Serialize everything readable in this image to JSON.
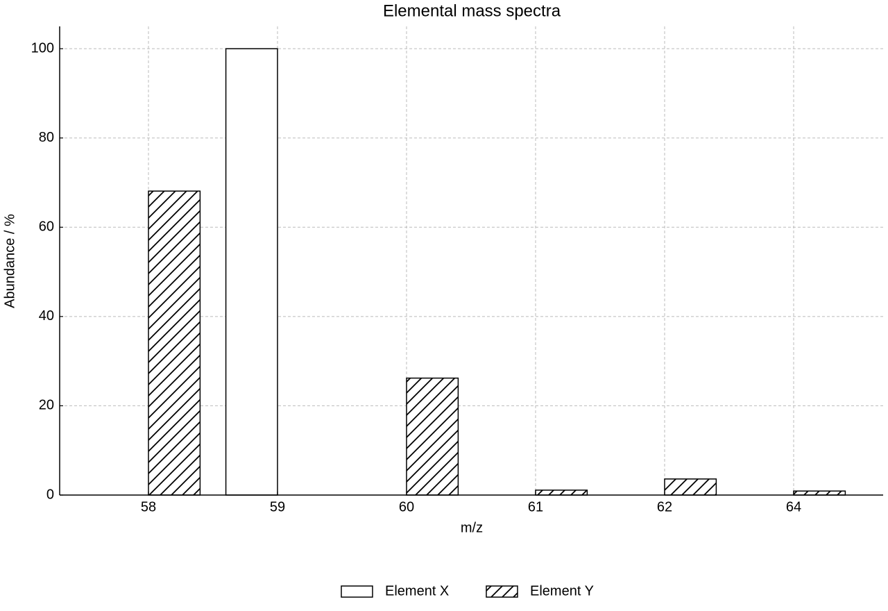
{
  "chart_data": {
    "type": "bar",
    "title": "Elemental mass spectra",
    "x_label": "m/z",
    "y_label": "Abundance / %",
    "categories": [
      "58",
      "59",
      "60",
      "61",
      "62",
      "64"
    ],
    "series": [
      {
        "name": "Element X",
        "color": "#ffffff",
        "edgecolor": "#000000",
        "hatch": "",
        "values": [
          0,
          100,
          0,
          0,
          0,
          0
        ]
      },
      {
        "name": "Element Y",
        "color": "#ffffff",
        "edgecolor": "#000000",
        "hatch": "/",
        "values": [
          68.1,
          0,
          26.2,
          1.1,
          3.6,
          0.9
        ]
      }
    ],
    "ylim": [
      0,
      105
    ],
    "yticks": [
      0,
      20,
      40,
      60,
      80,
      100
    ],
    "grid": true,
    "legend": "bottom"
  }
}
